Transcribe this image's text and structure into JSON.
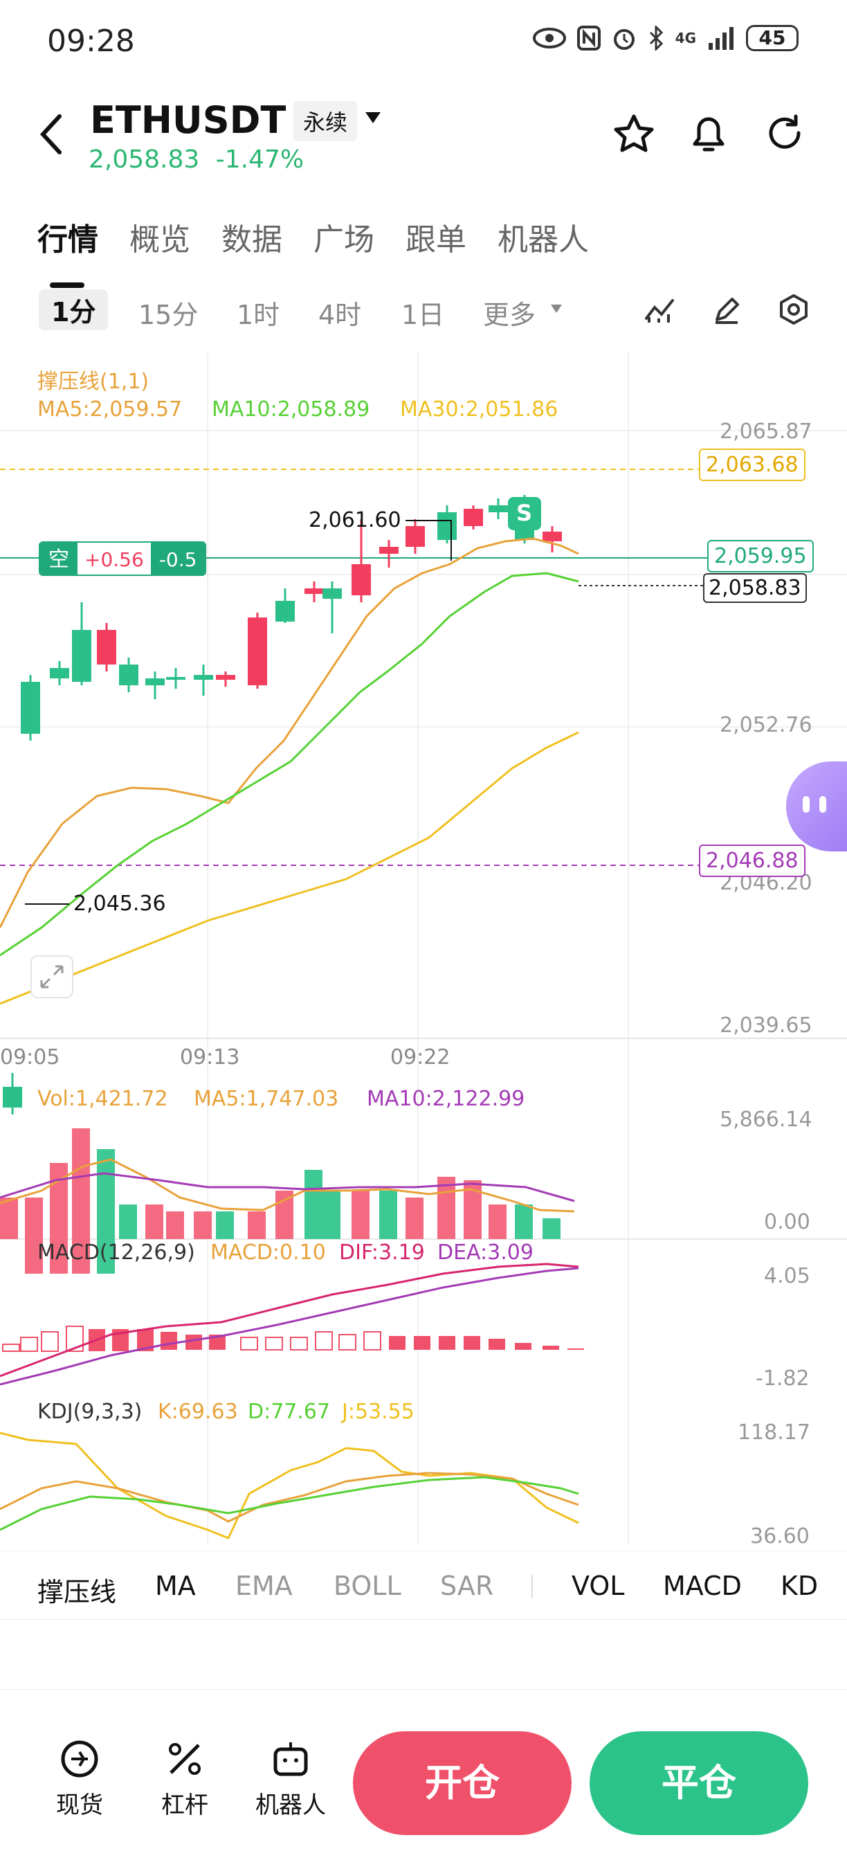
{
  "status": {
    "time": "09:28",
    "battery": "45",
    "net": "4G"
  },
  "header": {
    "symbol": "ETHUSDT",
    "contract_type": "永续",
    "last_price": "2,058.83",
    "change": "-1.47%"
  },
  "tabs": [
    "行情",
    "概览",
    "数据",
    "广场",
    "跟单",
    "机器人"
  ],
  "timeframes": {
    "active": "1分",
    "items": [
      "15分",
      "1时",
      "4时",
      "1日",
      "更多"
    ]
  },
  "main_chart": {
    "indicator": "撑压线(1,1)",
    "ma5": "MA5:2,059.57",
    "ma10": "MA10:2,058.89",
    "ma30": "MA30:2,051.86",
    "y_ticks": [
      "2,065.87",
      "2,052.76",
      "2,046.20",
      "2,039.65"
    ],
    "x_ticks": [
      "09:05",
      "09:13",
      "09:22"
    ],
    "resistance": "2,063.68",
    "support": "2,046.88",
    "position_price": "2,059.95",
    "last_tag": "2,058.83",
    "high_label": "2,061.60",
    "low_label": "2,045.36",
    "position": {
      "side": "空",
      "pnl": "+0.56",
      "size": "-0.5"
    },
    "signal": "S",
    "colors": {
      "up": "#f23d5e",
      "down": "#2bbf8a",
      "ma5": "#e8a23a",
      "ma10": "#56d134",
      "ma30": "#f0c020"
    }
  },
  "volume": {
    "vol": "Vol:1,421.72",
    "ma5": "MA5:1,747.03",
    "ma10": "MA10:2,122.99",
    "top": "5,866.14",
    "bottom": "0.00"
  },
  "macd": {
    "title": "MACD(12,26,9)",
    "macd": "MACD:0.10",
    "dif": "DIF:3.19",
    "dea": "DEA:3.09",
    "top": "4.05",
    "bottom": "-1.82"
  },
  "kdj": {
    "title": "KDJ(9,3,3)",
    "k": "K:69.63",
    "d": "D:77.67",
    "j": "J:53.55",
    "top": "118.17",
    "bottom": "36.60"
  },
  "indicators": [
    "撑压线",
    "MA",
    "EMA",
    "BOLL",
    "SAR",
    "VOL",
    "MACD",
    "KD"
  ],
  "bottom_bar": {
    "spot": "现货",
    "leverage": "杠杆",
    "robot": "机器人",
    "open": "开仓",
    "close": "平仓"
  }
}
